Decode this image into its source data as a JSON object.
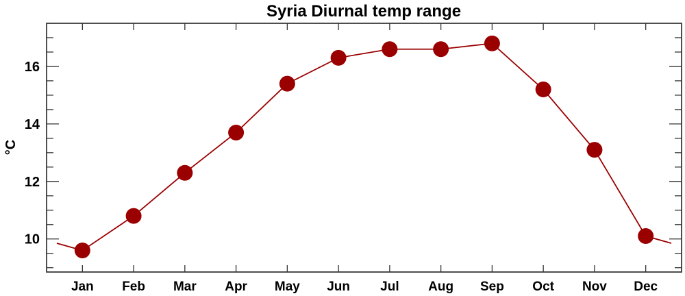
{
  "chart_data": {
    "type": "line",
    "title": "Syria Diurnal temp range",
    "xlabel": "",
    "ylabel": "°C",
    "categories": [
      "Jan",
      "Feb",
      "Mar",
      "Apr",
      "May",
      "Jun",
      "Jul",
      "Aug",
      "Sep",
      "Oct",
      "Nov",
      "Dec"
    ],
    "series": [
      {
        "values": [
          9.6,
          10.8,
          12.3,
          13.7,
          15.4,
          16.3,
          16.6,
          16.6,
          16.8,
          15.2,
          13.1,
          10.1
        ],
        "color": "#9b0000"
      }
    ],
    "ylim": [
      8.85,
      17.5
    ],
    "yticks": [
      10,
      12,
      14,
      16
    ],
    "yminor_step": 0.5,
    "wraps_around": true,
    "grid": false,
    "marker": "filled-circle"
  }
}
